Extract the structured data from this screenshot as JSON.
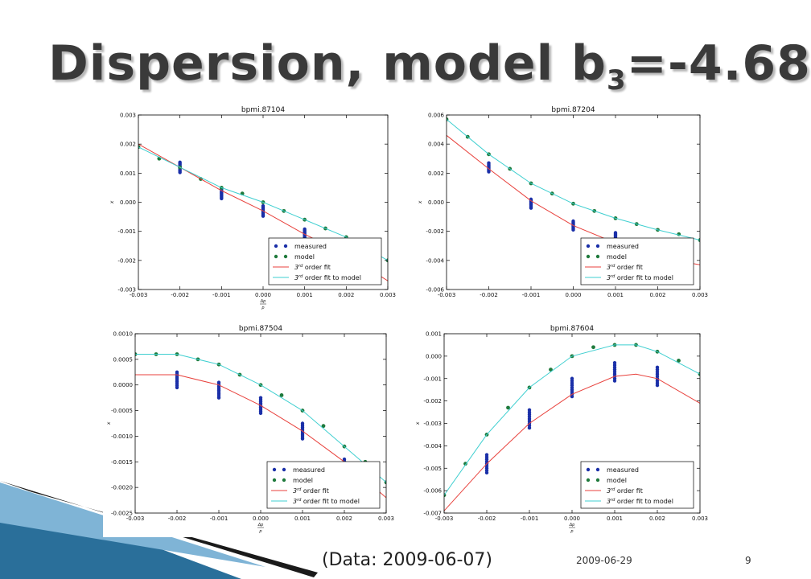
{
  "slide": {
    "title_main": "Dispersion, model b",
    "title_sub": "3",
    "title_tail": "=-4.68",
    "footer_note": "(Data: 2009-06-07)",
    "footer_date": "2009-06-29",
    "page_number": "9"
  },
  "colors": {
    "measured": "#1a2fa8",
    "model": "#1f7a3c",
    "fit": "#e8413c",
    "fit_model": "#3fcfd0",
    "deco_dark": "#1a1a1a",
    "deco_blue": "#2a6f9a"
  },
  "legend": {
    "measured": "measured",
    "model": "model",
    "fit": "order fit",
    "fit_model": "order fit to model",
    "fit_prefix": "3",
    "fit_sup": "rd"
  },
  "chart_data": [
    {
      "type": "scatter",
      "title": "bpmi.87104",
      "ylabel": "x",
      "xlabel_num": "Δp",
      "xlabel_den": "p",
      "xlim": [
        -0.003,
        0.003
      ],
      "ylim": [
        -0.003,
        0.003
      ],
      "xticks": [
        "-0.003",
        "-0.002",
        "-0.001",
        "0.000",
        "0.001",
        "0.002",
        "0.003"
      ],
      "yticks": [
        "0.003",
        "0.002",
        "0.001",
        "0.000",
        "-0.001",
        "-0.002",
        "-0.003"
      ],
      "legend_position": "lower-right",
      "series": [
        {
          "name": "measured",
          "kind": "points",
          "x": [
            -0.002,
            -0.001,
            0.0,
            0.001,
            0.002
          ],
          "y": [
            0.0012,
            0.0003,
            -0.0003,
            -0.0011,
            -0.0018
          ],
          "spread": 0.00035
        },
        {
          "name": "model",
          "kind": "points",
          "x": [
            -0.003,
            -0.0025,
            -0.002,
            -0.0015,
            -0.001,
            -0.0005,
            0.0,
            0.0005,
            0.001,
            0.0015,
            0.002,
            0.0025,
            0.003
          ],
          "y": [
            0.0019,
            0.0015,
            0.0012,
            0.0008,
            0.0005,
            0.0003,
            0.0,
            -0.0003,
            -0.0006,
            -0.0009,
            -0.0012,
            -0.0016,
            -0.002
          ]
        },
        {
          "name": "3rd order fit",
          "kind": "line",
          "x": [
            -0.003,
            -0.002,
            -0.001,
            0.0,
            0.001,
            0.002,
            0.003
          ],
          "y": [
            0.002,
            0.0012,
            0.0004,
            -0.0003,
            -0.0011,
            -0.0018,
            -0.0027
          ]
        },
        {
          "name": "3rd order fit to model",
          "kind": "line",
          "x": [
            -0.003,
            -0.002,
            -0.001,
            0.0,
            0.001,
            0.002,
            0.003
          ],
          "y": [
            0.0019,
            0.0012,
            0.0005,
            0.0,
            -0.0006,
            -0.0012,
            -0.002
          ]
        }
      ]
    },
    {
      "type": "scatter",
      "title": "bpmi.87204",
      "ylabel": "x",
      "xlabel_num": "",
      "xlabel_den": "",
      "xlim": [
        -0.003,
        0.003
      ],
      "ylim": [
        -0.006,
        0.006
      ],
      "xticks": [
        "-0.003",
        "-0.002",
        "-0.001",
        "0.000",
        "0.001",
        "0.002",
        "0.003"
      ],
      "yticks": [
        "0.006",
        "0.004",
        "0.002",
        "0.000",
        "-0.002",
        "-0.004",
        "-0.006"
      ],
      "legend_position": "lower-right",
      "series": [
        {
          "name": "measured",
          "kind": "points",
          "x": [
            -0.002,
            -0.001,
            0.0,
            0.001,
            0.002
          ],
          "y": [
            0.0024,
            -0.0001,
            -0.0016,
            -0.0024,
            -0.0038
          ],
          "spread": 0.0006
        },
        {
          "name": "model",
          "kind": "points",
          "x": [
            -0.003,
            -0.0025,
            -0.002,
            -0.0015,
            -0.001,
            -0.0005,
            0.0,
            0.0005,
            0.001,
            0.0015,
            0.002,
            0.0025,
            0.003
          ],
          "y": [
            0.0057,
            0.0045,
            0.0033,
            0.0023,
            0.0013,
            0.0006,
            -0.0001,
            -0.0006,
            -0.0011,
            -0.0015,
            -0.0019,
            -0.0022,
            -0.0026
          ]
        },
        {
          "name": "3rd order fit",
          "kind": "line",
          "x": [
            -0.003,
            -0.002,
            -0.001,
            0.0,
            0.001,
            0.002,
            0.003
          ],
          "y": [
            0.0046,
            0.0023,
            0.0001,
            -0.0016,
            -0.0028,
            -0.0038,
            -0.0043
          ]
        },
        {
          "name": "3rd order fit to model",
          "kind": "line",
          "x": [
            -0.003,
            -0.002,
            -0.001,
            0.0,
            0.001,
            0.002,
            0.003
          ],
          "y": [
            0.0057,
            0.0033,
            0.0013,
            -0.0001,
            -0.0011,
            -0.0019,
            -0.0026
          ]
        }
      ]
    },
    {
      "type": "scatter",
      "title": "bpmi.87504",
      "ylabel": "x",
      "xlabel_num": "Δp",
      "xlabel_den": "p",
      "xlim": [
        -0.003,
        0.003
      ],
      "ylim": [
        -0.0025,
        0.001
      ],
      "xticks": [
        "-0.003",
        "-0.002",
        "-0.001",
        "0.000",
        "0.001",
        "0.002",
        "0.003"
      ],
      "yticks": [
        "0.0010",
        "0.0005",
        "0.0000",
        "-0.0005",
        "-0.0010",
        "-0.0015",
        "-0.0020",
        "-0.0025"
      ],
      "legend_position": "lower-right",
      "series": [
        {
          "name": "measured",
          "kind": "points",
          "x": [
            -0.002,
            -0.001,
            0.0,
            0.001,
            0.002
          ],
          "y": [
            0.0001,
            -0.0001,
            -0.0004,
            -0.0009,
            -0.0016
          ],
          "spread": 0.0003
        },
        {
          "name": "model",
          "kind": "points",
          "x": [
            -0.003,
            -0.0025,
            -0.002,
            -0.0015,
            -0.001,
            -0.0005,
            0.0,
            0.0005,
            0.001,
            0.0015,
            0.002,
            0.0025,
            0.003
          ],
          "y": [
            0.0006,
            0.0006,
            0.0006,
            0.0005,
            0.0004,
            0.0002,
            0.0,
            -0.0002,
            -0.0005,
            -0.0008,
            -0.0012,
            -0.0015,
            -0.0019
          ]
        },
        {
          "name": "3rd order fit",
          "kind": "line",
          "x": [
            -0.003,
            -0.002,
            -0.001,
            0.0,
            0.001,
            0.002,
            0.003
          ],
          "y": [
            0.0002,
            0.0002,
            0.0,
            -0.0004,
            -0.0009,
            -0.0015,
            -0.0022
          ]
        },
        {
          "name": "3rd order fit to model",
          "kind": "line",
          "x": [
            -0.003,
            -0.002,
            -0.001,
            0.0,
            0.001,
            0.002,
            0.003
          ],
          "y": [
            0.0006,
            0.0006,
            0.0004,
            0.0,
            -0.0005,
            -0.0012,
            -0.0019
          ]
        }
      ]
    },
    {
      "type": "scatter",
      "title": "bpmi.87604",
      "ylabel": "x",
      "xlabel_num": "Δp",
      "xlabel_den": "p",
      "xlim": [
        -0.003,
        0.003
      ],
      "ylim": [
        -0.007,
        0.001
      ],
      "xticks": [
        "-0.003",
        "-0.002",
        "-0.001",
        "0.000",
        "0.001",
        "0.002",
        "0.003"
      ],
      "yticks": [
        "0.001",
        "0.000",
        "-0.001",
        "-0.002",
        "-0.003",
        "-0.004",
        "-0.005",
        "-0.006",
        "-0.007"
      ],
      "legend_position": "lower-right",
      "series": [
        {
          "name": "measured",
          "kind": "points",
          "x": [
            -0.002,
            -0.001,
            0.0,
            0.001,
            0.002
          ],
          "y": [
            -0.0048,
            -0.0028,
            -0.0014,
            -0.0007,
            -0.0009
          ],
          "spread": 0.0008
        },
        {
          "name": "model",
          "kind": "points",
          "x": [
            -0.003,
            -0.0025,
            -0.002,
            -0.0015,
            -0.001,
            -0.0005,
            0.0,
            0.0005,
            0.001,
            0.0015,
            0.002,
            0.0025,
            0.003
          ],
          "y": [
            -0.0062,
            -0.0048,
            -0.0035,
            -0.0023,
            -0.0014,
            -0.0006,
            0.0,
            0.0004,
            0.0005,
            0.0005,
            0.0002,
            -0.0002,
            -0.0008
          ]
        },
        {
          "name": "3rd order fit",
          "kind": "line",
          "x": [
            -0.003,
            -0.002,
            -0.001,
            0.0,
            0.001,
            0.0015,
            0.002,
            0.003
          ],
          "y": [
            -0.0069,
            -0.0048,
            -0.003,
            -0.0017,
            -0.0009,
            -0.0008,
            -0.001,
            -0.0021
          ]
        },
        {
          "name": "3rd order fit to model",
          "kind": "line",
          "x": [
            -0.003,
            -0.002,
            -0.001,
            0.0,
            0.001,
            0.0015,
            0.002,
            0.003
          ],
          "y": [
            -0.0062,
            -0.0035,
            -0.0014,
            0.0,
            0.0005,
            0.0005,
            0.0002,
            -0.0008
          ]
        }
      ]
    }
  ]
}
